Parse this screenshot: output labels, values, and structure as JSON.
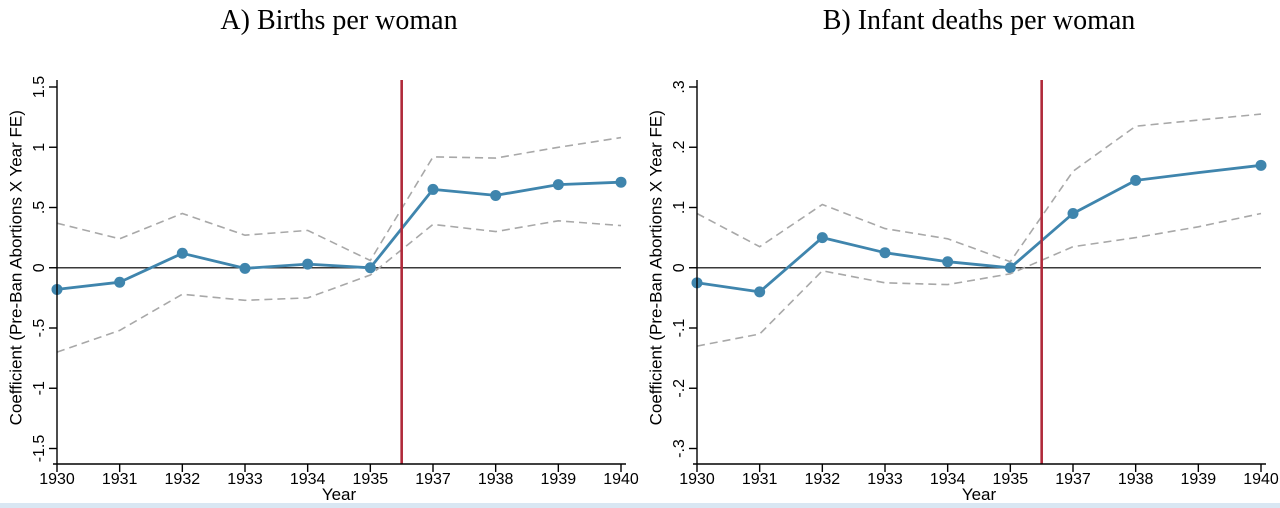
{
  "page": {
    "background": "#ffffff",
    "bottom_strip_color": "#d9e7f3"
  },
  "chart_data": [
    {
      "type": "line",
      "title": "A) Births per woman",
      "xlabel": "Year",
      "ylabel": "Coefficient (Pre-Ban Abortions X Year FE)",
      "x_categories": [
        "1930",
        "1931",
        "1932",
        "1933",
        "1934",
        "1935",
        "1937",
        "1938",
        "1939",
        "1940"
      ],
      "ylim": [
        -1.5,
        1.5
      ],
      "y_ticks": [
        {
          "value": 1.5,
          "label": "1.5"
        },
        {
          "value": 1.0,
          "label": "1"
        },
        {
          "value": 0.5,
          "label": ".5"
        },
        {
          "value": 0.0,
          "label": "0"
        },
        {
          "value": -0.5,
          "label": "-.5"
        },
        {
          "value": -1.0,
          "label": "-1"
        },
        {
          "value": -1.5,
          "label": "-1.5"
        }
      ],
      "zero_line_value": 0,
      "vline": {
        "between": [
          "1935",
          "1937"
        ],
        "color": "#b0293a"
      },
      "grid": "off",
      "legend": "none",
      "series": [
        {
          "name": "coefficient",
          "style": "solid",
          "color": "#3f85ad",
          "values": [
            -0.18,
            -0.12,
            0.12,
            -0.005,
            0.03,
            0.0,
            0.65,
            0.6,
            0.69,
            0.71
          ],
          "markers": [
            true,
            true,
            true,
            true,
            true,
            true,
            true,
            true,
            true,
            true
          ]
        },
        {
          "name": "ci_upper",
          "style": "dashed",
          "color": "#a8a8a8",
          "values": [
            0.37,
            0.24,
            0.45,
            0.27,
            0.31,
            0.06,
            0.92,
            0.91,
            1.0,
            1.08
          ]
        },
        {
          "name": "ci_lower",
          "style": "dashed",
          "color": "#a8a8a8",
          "values": [
            -0.7,
            -0.52,
            -0.22,
            -0.27,
            -0.25,
            -0.06,
            0.36,
            0.3,
            0.39,
            0.35
          ]
        }
      ]
    },
    {
      "type": "line",
      "title": "B) Infant deaths per woman",
      "xlabel": "Year",
      "ylabel": "Coefficient (Pre-Ban Abortions X Year FE)",
      "x_categories": [
        "1930",
        "1931",
        "1932",
        "1933",
        "1934",
        "1935",
        "1937",
        "1938",
        "1939",
        "1940"
      ],
      "ylim": [
        -0.3,
        0.3
      ],
      "y_ticks": [
        {
          "value": 0.3,
          "label": ".3"
        },
        {
          "value": 0.2,
          "label": ".2"
        },
        {
          "value": 0.1,
          "label": ".1"
        },
        {
          "value": 0.0,
          "label": "0"
        },
        {
          "value": -0.1,
          "label": "-.1"
        },
        {
          "value": -0.2,
          "label": "-.2"
        },
        {
          "value": -0.3,
          "label": "-.3"
        }
      ],
      "zero_line_value": 0,
      "vline": {
        "between": [
          "1935",
          "1937"
        ],
        "color": "#b0293a"
      },
      "grid": "off",
      "legend": "none",
      "series": [
        {
          "name": "coefficient",
          "style": "solid",
          "color": "#3f85ad",
          "values": [
            -0.025,
            -0.04,
            0.05,
            0.025,
            0.01,
            0.0,
            0.09,
            0.145,
            0.158,
            0.17
          ],
          "markers": [
            true,
            true,
            true,
            true,
            true,
            true,
            true,
            true,
            false,
            true
          ]
        },
        {
          "name": "ci_upper",
          "style": "dashed",
          "color": "#a8a8a8",
          "values": [
            0.09,
            0.035,
            0.105,
            0.065,
            0.048,
            0.01,
            0.16,
            0.235,
            0.245,
            0.255
          ]
        },
        {
          "name": "ci_lower",
          "style": "dashed",
          "color": "#a8a8a8",
          "values": [
            -0.13,
            -0.11,
            -0.005,
            -0.025,
            -0.028,
            -0.01,
            0.035,
            0.05,
            0.068,
            0.09
          ]
        }
      ]
    }
  ],
  "style": {
    "axis_color": "#000000",
    "zero_line_color": "#3a3a3a",
    "tick_label_color": "#000000"
  }
}
